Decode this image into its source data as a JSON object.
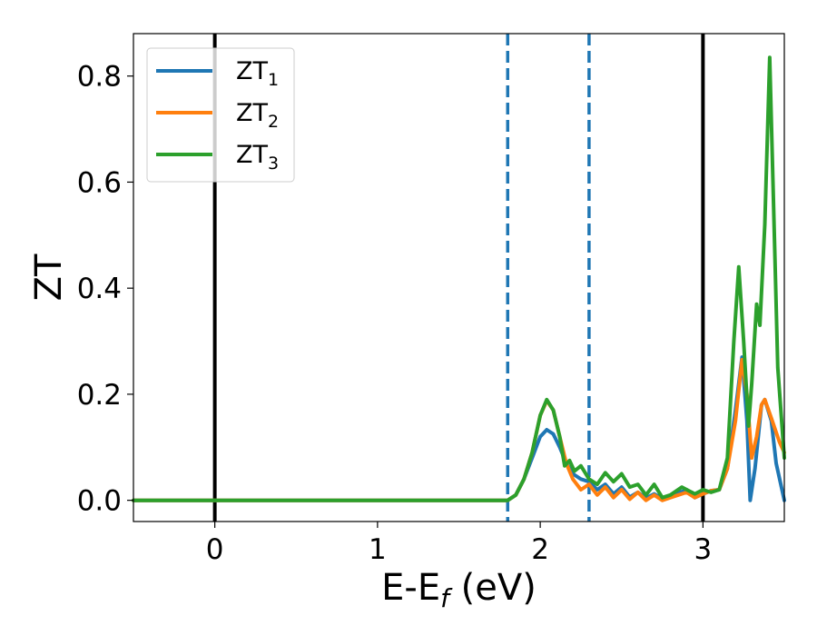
{
  "chart_data": {
    "type": "line",
    "xlabel": "E-E",
    "xlabel_sub": "f",
    "xlabel_unit": " (eV)",
    "ylabel": "ZT",
    "xlim": [
      -0.5,
      3.5
    ],
    "ylim": [
      -0.04,
      0.88
    ],
    "x_ticks": [
      0,
      1,
      2,
      3
    ],
    "x_tick_labels": [
      "0",
      "1",
      "2",
      "3"
    ],
    "y_ticks": [
      0.0,
      0.2,
      0.4,
      0.6,
      0.8
    ],
    "y_tick_labels": [
      "0.0",
      "0.2",
      "0.4",
      "0.6",
      "0.8"
    ],
    "grid": false,
    "legend_position": "top-left",
    "vlines": [
      {
        "x": 0,
        "style": "solid",
        "color": "#000000"
      },
      {
        "x": 3,
        "style": "solid",
        "color": "#000000"
      },
      {
        "x": 1.8,
        "style": "dashed",
        "color": "#1f77b4"
      },
      {
        "x": 2.3,
        "style": "dashed",
        "color": "#1f77b4"
      }
    ],
    "series": [
      {
        "name": "ZT",
        "sub": "1",
        "color": "#1f77b4",
        "points": [
          [
            -0.5,
            0
          ],
          [
            1.8,
            0
          ],
          [
            1.85,
            0.01
          ],
          [
            1.9,
            0.04
          ],
          [
            1.95,
            0.08
          ],
          [
            2.0,
            0.12
          ],
          [
            2.04,
            0.133
          ],
          [
            2.08,
            0.125
          ],
          [
            2.12,
            0.1
          ],
          [
            2.16,
            0.07
          ],
          [
            2.2,
            0.05
          ],
          [
            2.25,
            0.04
          ],
          [
            2.3,
            0.035
          ],
          [
            2.35,
            0.02
          ],
          [
            2.4,
            0.03
          ],
          [
            2.45,
            0.012
          ],
          [
            2.5,
            0.025
          ],
          [
            2.55,
            0.006
          ],
          [
            2.6,
            0.015
          ],
          [
            2.65,
            0.004
          ],
          [
            2.7,
            0.012
          ],
          [
            2.75,
            0.003
          ],
          [
            2.8,
            0.008
          ],
          [
            2.9,
            0.02
          ],
          [
            2.95,
            0.005
          ],
          [
            3.0,
            0.012
          ],
          [
            3.05,
            0.018
          ],
          [
            3.1,
            0.02
          ],
          [
            3.15,
            0.06
          ],
          [
            3.2,
            0.17
          ],
          [
            3.24,
            0.27
          ],
          [
            3.27,
            0.15
          ],
          [
            3.29,
            0.0
          ],
          [
            3.32,
            0.06
          ],
          [
            3.36,
            0.18
          ],
          [
            3.38,
            0.19
          ],
          [
            3.42,
            0.15
          ],
          [
            3.45,
            0.07
          ],
          [
            3.5,
            0.0
          ]
        ]
      },
      {
        "name": "ZT",
        "sub": "2",
        "color": "#ff7f0e",
        "points": [
          [
            -0.5,
            0
          ],
          [
            1.8,
            0
          ],
          [
            1.85,
            0.01
          ],
          [
            1.9,
            0.04
          ],
          [
            1.95,
            0.09
          ],
          [
            2.0,
            0.16
          ],
          [
            2.04,
            0.188
          ],
          [
            2.08,
            0.17
          ],
          [
            2.12,
            0.12
          ],
          [
            2.16,
            0.07
          ],
          [
            2.2,
            0.04
          ],
          [
            2.25,
            0.02
          ],
          [
            2.3,
            0.03
          ],
          [
            2.35,
            0.01
          ],
          [
            2.4,
            0.025
          ],
          [
            2.45,
            0.005
          ],
          [
            2.5,
            0.02
          ],
          [
            2.55,
            0.002
          ],
          [
            2.6,
            0.015
          ],
          [
            2.65,
            0.0
          ],
          [
            2.7,
            0.01
          ],
          [
            2.75,
            0.0
          ],
          [
            2.8,
            0.005
          ],
          [
            2.9,
            0.015
          ],
          [
            2.95,
            0.005
          ],
          [
            3.0,
            0.012
          ],
          [
            3.05,
            0.018
          ],
          [
            3.1,
            0.02
          ],
          [
            3.15,
            0.06
          ],
          [
            3.2,
            0.15
          ],
          [
            3.24,
            0.265
          ],
          [
            3.27,
            0.2
          ],
          [
            3.3,
            0.08
          ],
          [
            3.33,
            0.12
          ],
          [
            3.36,
            0.18
          ],
          [
            3.38,
            0.19
          ],
          [
            3.42,
            0.155
          ],
          [
            3.47,
            0.11
          ],
          [
            3.5,
            0.09
          ]
        ]
      },
      {
        "name": "ZT",
        "sub": "3",
        "color": "#2ca02c",
        "points": [
          [
            -0.5,
            0
          ],
          [
            1.8,
            0
          ],
          [
            1.85,
            0.01
          ],
          [
            1.9,
            0.04
          ],
          [
            1.95,
            0.09
          ],
          [
            2.0,
            0.16
          ],
          [
            2.04,
            0.19
          ],
          [
            2.08,
            0.17
          ],
          [
            2.12,
            0.12
          ],
          [
            2.15,
            0.065
          ],
          [
            2.18,
            0.075
          ],
          [
            2.21,
            0.055
          ],
          [
            2.25,
            0.065
          ],
          [
            2.3,
            0.04
          ],
          [
            2.35,
            0.03
          ],
          [
            2.4,
            0.052
          ],
          [
            2.45,
            0.035
          ],
          [
            2.5,
            0.05
          ],
          [
            2.55,
            0.025
          ],
          [
            2.6,
            0.03
          ],
          [
            2.65,
            0.01
          ],
          [
            2.7,
            0.03
          ],
          [
            2.75,
            0.005
          ],
          [
            2.8,
            0.01
          ],
          [
            2.87,
            0.025
          ],
          [
            2.95,
            0.012
          ],
          [
            3.0,
            0.02
          ],
          [
            3.05,
            0.015
          ],
          [
            3.1,
            0.02
          ],
          [
            3.15,
            0.08
          ],
          [
            3.19,
            0.3
          ],
          [
            3.22,
            0.44
          ],
          [
            3.25,
            0.3
          ],
          [
            3.28,
            0.14
          ],
          [
            3.3,
            0.22
          ],
          [
            3.33,
            0.37
          ],
          [
            3.35,
            0.33
          ],
          [
            3.38,
            0.52
          ],
          [
            3.41,
            0.835
          ],
          [
            3.43,
            0.6
          ],
          [
            3.46,
            0.25
          ],
          [
            3.5,
            0.08
          ]
        ]
      }
    ]
  }
}
